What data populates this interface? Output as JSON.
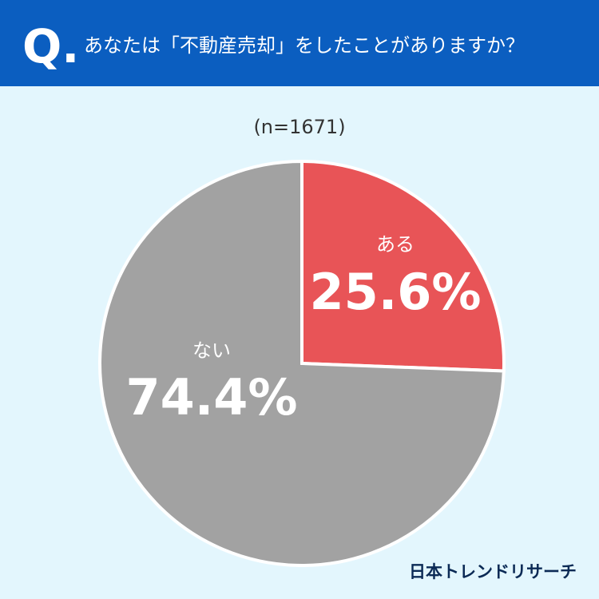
{
  "chart_data": {
    "type": "pie",
    "prefix": "Q.",
    "title": "あなたは「不動産売却」をしたことがありますか？",
    "subtitle": "(n=1671)",
    "categories": [
      "ある",
      "ない"
    ],
    "values": [
      25.6,
      74.4
    ],
    "value_labels": [
      "25.6%",
      "74.4%"
    ],
    "colors": [
      "#e85457",
      "#a2a2a2"
    ],
    "source": "日本トレンドリサーチ"
  }
}
